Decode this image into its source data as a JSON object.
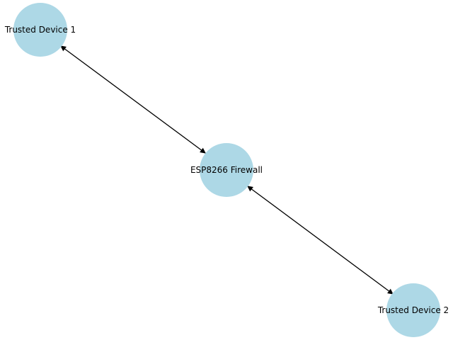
{
  "diagram": {
    "type": "network-graph",
    "node_color": "#add8e6",
    "edge_color": "#000000",
    "background": "#ffffff",
    "directed": "bidirectional",
    "nodes": [
      {
        "id": "device1",
        "label": "Trusted Device 1"
      },
      {
        "id": "firewall",
        "label": "ESP8266 Firewall"
      },
      {
        "id": "device2",
        "label": "Trusted Device 2"
      }
    ],
    "edges": [
      {
        "from": "device1",
        "to": "firewall"
      },
      {
        "from": "firewall",
        "to": "device2"
      }
    ]
  }
}
